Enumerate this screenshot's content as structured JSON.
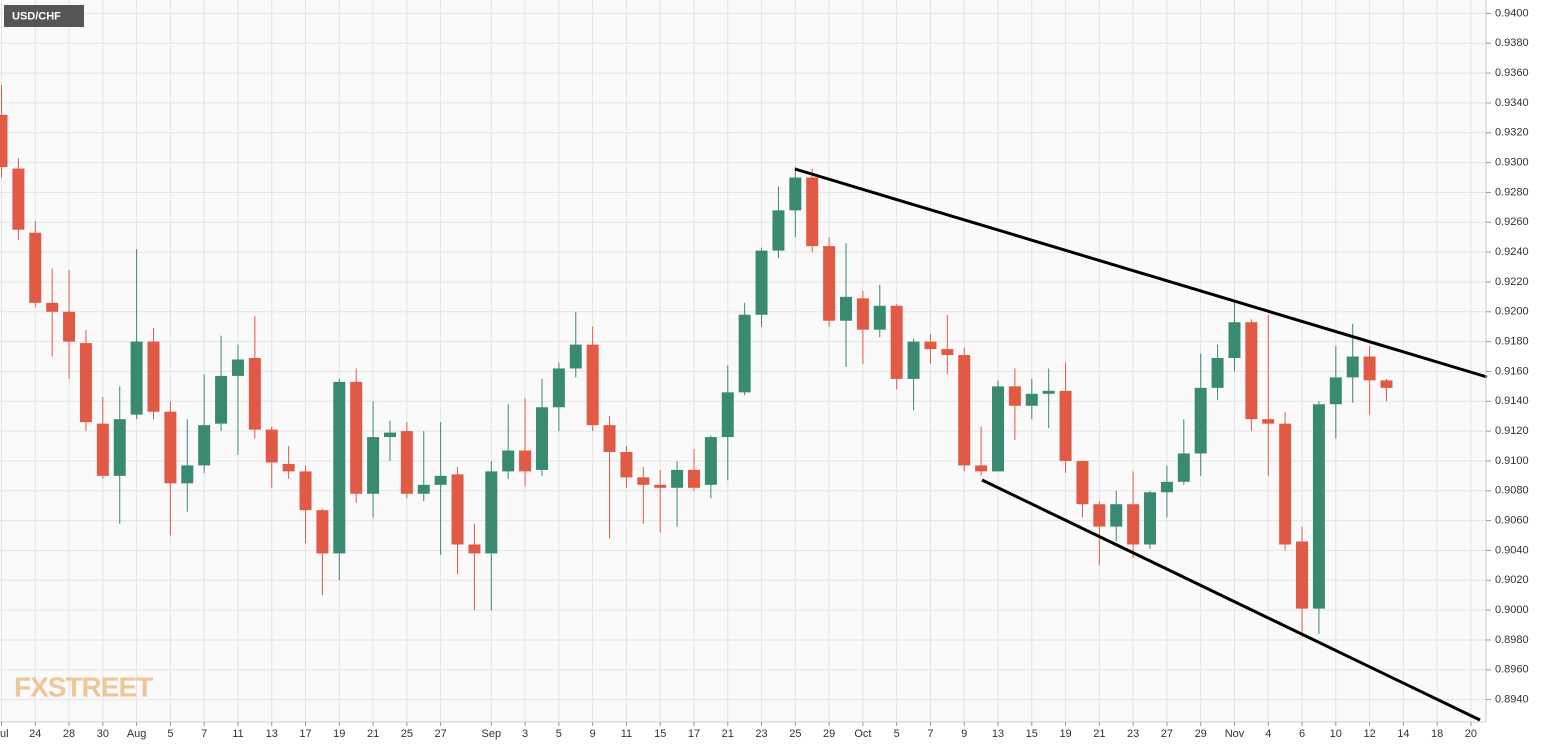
{
  "chart_data": {
    "type": "candlestick",
    "title": "USD/CHF",
    "watermark": "FXSTREET",
    "categories": [
      "Jul",
      null,
      "24",
      null,
      "28",
      null,
      "30",
      null,
      "Aug",
      null,
      "5",
      null,
      "7",
      null,
      "11",
      null,
      "13",
      null,
      "17",
      null,
      "19",
      null,
      "21",
      null,
      "25",
      null,
      "27",
      null,
      null,
      "Sep",
      null,
      "3",
      null,
      "5",
      null,
      "9",
      null,
      "11",
      null,
      "15",
      null,
      "17",
      null,
      "21",
      null,
      "23",
      null,
      "25",
      null,
      "29",
      null,
      "Oct",
      null,
      "5",
      null,
      "7",
      null,
      "9",
      null,
      "13",
      null,
      "15",
      null,
      "19",
      null,
      "21",
      null,
      "23",
      null,
      "27",
      null,
      "29",
      null,
      "Nov",
      null,
      "4",
      null,
      "6",
      null,
      "10",
      null,
      "12",
      null,
      "14",
      null,
      "18",
      null,
      "20"
    ],
    "open": [
      0.9332,
      0.9296,
      0.9253,
      0.9206,
      0.92,
      0.9179,
      0.9125,
      0.909,
      0.9131,
      0.918,
      0.9133,
      0.9085,
      0.9097,
      0.9125,
      0.9157,
      0.9169,
      0.9121,
      0.9098,
      0.9093,
      0.9067,
      0.9038,
      0.9153,
      0.9078,
      0.9116,
      0.912,
      0.9078,
      0.9084,
      0.9091,
      0.9044,
      0.9038,
      0.9093,
      0.9107,
      0.9094,
      0.9136,
      0.9162,
      0.9178,
      0.9124,
      0.9106,
      0.9089,
      0.9084,
      0.9082,
      0.9094,
      0.9084,
      0.9116,
      0.9146,
      0.9198,
      0.9241,
      0.9268,
      0.929,
      0.9244,
      0.9194,
      0.9209,
      0.9188,
      0.9204,
      0.9155,
      0.918,
      0.9175,
      0.9171,
      0.9097,
      0.9093,
      0.915,
      0.9137,
      0.9145,
      0.9147,
      0.91,
      0.9071,
      0.9056,
      0.9071,
      0.9044,
      0.9079,
      0.9086,
      0.9105,
      0.9149,
      0.9169,
      0.9193,
      0.9128,
      0.9125,
      0.9046,
      0.9001,
      0.9138,
      0.9156,
      0.917,
      0.9154,
      null,
      null,
      null,
      null,
      null
    ],
    "high": [
      0.9352,
      0.9303,
      0.9261,
      0.9229,
      0.9228,
      0.9188,
      0.9143,
      0.915,
      0.9242,
      0.9189,
      0.914,
      0.9128,
      0.9158,
      0.9184,
      0.9178,
      0.9197,
      0.9123,
      0.911,
      0.9097,
      0.9068,
      0.9155,
      0.9162,
      0.914,
      0.9127,
      0.9126,
      0.912,
      0.9126,
      0.9096,
      0.9058,
      0.91,
      0.9138,
      0.9142,
      0.9155,
      0.9166,
      0.92,
      0.919,
      0.913,
      0.911,
      0.9096,
      0.9094,
      0.91,
      0.9108,
      0.9117,
      0.9164,
      0.9206,
      0.9243,
      0.9284,
      0.9297,
      0.9296,
      0.925,
      0.9246,
      0.9214,
      0.9218,
      0.9205,
      0.9182,
      0.9185,
      0.9198,
      0.9176,
      0.9123,
      0.9154,
      0.9162,
      0.9155,
      0.9162,
      0.9166,
      0.91,
      0.9073,
      0.908,
      0.9093,
      0.908,
      0.9097,
      0.9128,
      0.9172,
      0.9178,
      0.9207,
      0.9195,
      0.9198,
      0.9133,
      0.9056,
      0.914,
      0.9177,
      0.9192,
      0.9177,
      0.9155,
      null,
      null,
      null,
      null,
      null
    ],
    "low": [
      0.929,
      0.9248,
      0.9203,
      0.917,
      0.9155,
      0.912,
      0.9088,
      0.9058,
      0.9128,
      0.9128,
      0.905,
      0.9066,
      0.9092,
      0.912,
      0.9104,
      0.9115,
      0.9082,
      0.9088,
      0.9045,
      0.901,
      0.902,
      0.9072,
      0.9062,
      0.91,
      0.9075,
      0.9073,
      0.9037,
      0.9024,
      0.9,
      0.9,
      0.9088,
      0.9083,
      0.909,
      0.912,
      0.9156,
      0.912,
      0.9048,
      0.9082,
      0.9058,
      0.9052,
      0.9056,
      0.908,
      0.9075,
      0.9087,
      0.9144,
      0.919,
      0.9236,
      0.925,
      0.924,
      0.919,
      0.9163,
      0.9165,
      0.9183,
      0.9148,
      0.9134,
      0.9165,
      0.9158,
      0.9093,
      0.909,
      0.9093,
      0.9114,
      0.9128,
      0.9122,
      0.9092,
      0.9062,
      0.903,
      0.9046,
      0.9035,
      0.9041,
      0.9062,
      0.9084,
      0.909,
      0.9141,
      0.916,
      0.912,
      0.909,
      0.904,
      0.8982,
      0.8984,
      0.9115,
      0.9139,
      0.9131,
      0.914,
      null,
      null,
      null,
      null,
      null
    ],
    "close": [
      0.9297,
      0.9255,
      0.9206,
      0.92,
      0.918,
      0.9126,
      0.909,
      0.9128,
      0.918,
      0.9133,
      0.9085,
      0.9097,
      0.9124,
      0.9157,
      0.9168,
      0.9121,
      0.9099,
      0.9093,
      0.9067,
      0.9038,
      0.9153,
      0.9078,
      0.9116,
      0.9119,
      0.9078,
      0.9084,
      0.909,
      0.9044,
      0.9038,
      0.9093,
      0.9107,
      0.9093,
      0.9136,
      0.9162,
      0.9178,
      0.9124,
      0.9106,
      0.9089,
      0.9084,
      0.9082,
      0.9094,
      0.9082,
      0.9116,
      0.9146,
      0.9198,
      0.9241,
      0.9268,
      0.929,
      0.9244,
      0.9194,
      0.921,
      0.9188,
      0.9204,
      0.9155,
      0.918,
      0.9175,
      0.9171,
      0.9097,
      0.9093,
      0.915,
      0.9137,
      0.9145,
      0.9147,
      0.91,
      0.9071,
      0.9056,
      0.9071,
      0.9044,
      0.9079,
      0.9086,
      0.9105,
      0.9149,
      0.9169,
      0.9193,
      0.9128,
      0.9125,
      0.9044,
      0.9001,
      0.9138,
      0.9156,
      0.917,
      0.9154,
      0.9149,
      null,
      null,
      null,
      null,
      null
    ],
    "up_color": "#3a8a72",
    "down_color": "#e05a46",
    "ylim": [
      0.8925,
      0.9409
    ],
    "yticks": [
      {
        "value": 0.94,
        "label": "0.9400"
      },
      {
        "value": 0.938,
        "label": "0.9380"
      },
      {
        "value": 0.936,
        "label": "0.9360"
      },
      {
        "value": 0.934,
        "label": "0.9340"
      },
      {
        "value": 0.932,
        "label": "0.9320"
      },
      {
        "value": 0.93,
        "label": "0.9300"
      },
      {
        "value": 0.928,
        "label": "0.9280"
      },
      {
        "value": 0.926,
        "label": "0.9260"
      },
      {
        "value": 0.924,
        "label": "0.9240"
      },
      {
        "value": 0.922,
        "label": "0.9220"
      },
      {
        "value": 0.92,
        "label": "0.9200"
      },
      {
        "value": 0.918,
        "label": "0.9180"
      },
      {
        "value": 0.916,
        "label": "0.9160"
      },
      {
        "value": 0.914,
        "label": "0.9140"
      },
      {
        "value": 0.912,
        "label": "0.9120"
      },
      {
        "value": 0.91,
        "label": "0.9100"
      },
      {
        "value": 0.908,
        "label": "0.9080"
      },
      {
        "value": 0.906,
        "label": "0.9060"
      },
      {
        "value": 0.904,
        "label": "0.9040"
      },
      {
        "value": 0.902,
        "label": "0.9020"
      },
      {
        "value": 0.9,
        "label": "0.9000"
      },
      {
        "value": 0.898,
        "label": "0.8980"
      },
      {
        "value": 0.896,
        "label": "0.8960"
      },
      {
        "value": 0.894,
        "label": "0.8940"
      }
    ],
    "grid": true
  }
}
